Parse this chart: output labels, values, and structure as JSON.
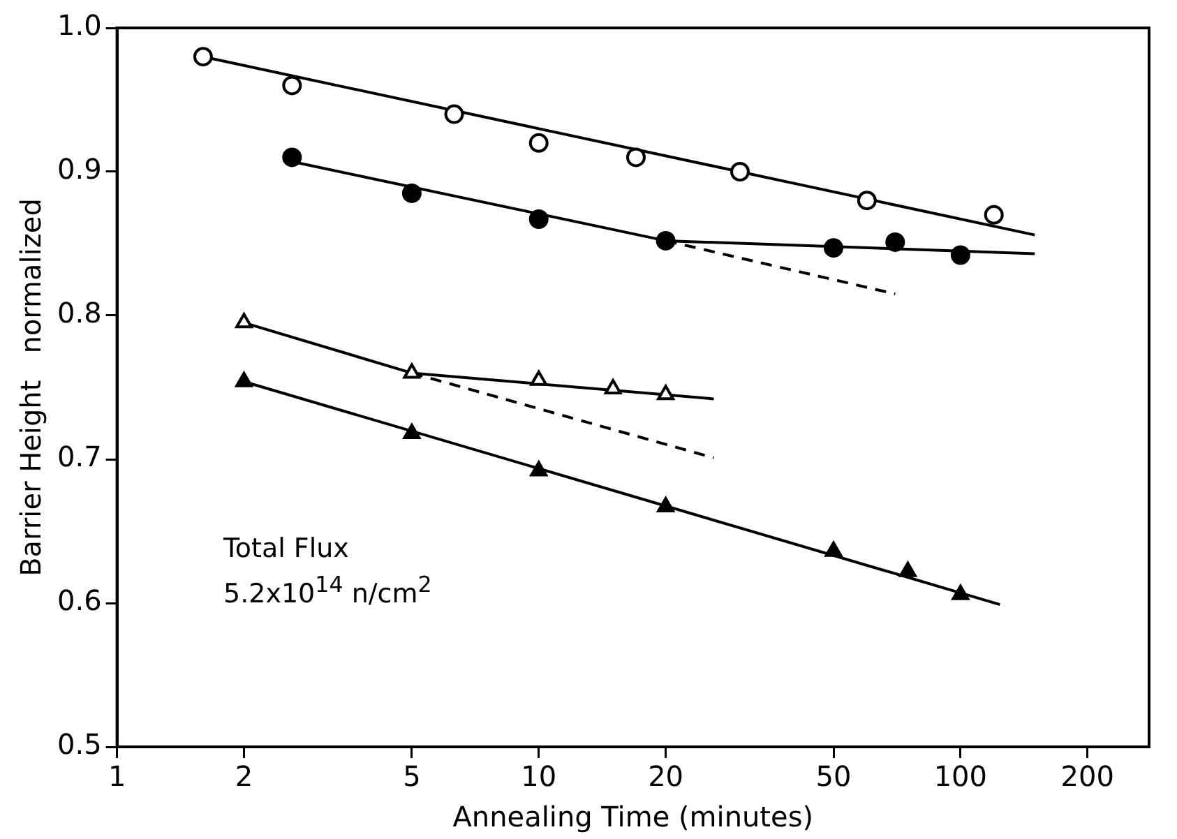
{
  "chart_data": {
    "type": "scatter",
    "xlabel": "Annealing Time (minutes)",
    "ylabel": "Barrier Height   normalized",
    "log": "x",
    "xlim": [
      1,
      280
    ],
    "xticks": [
      1,
      2,
      5,
      10,
      20,
      50,
      100,
      200
    ],
    "ylim": [
      0.5,
      1.0
    ],
    "yticks": [
      {
        "value": 0.5,
        "label": "0.5"
      },
      {
        "value": 0.6,
        "label": "0.6"
      },
      {
        "value": 0.7,
        "label": "0.7"
      },
      {
        "value": 0.8,
        "label": "0.8"
      },
      {
        "value": 0.9,
        "label": "0.9"
      },
      {
        "value": 1.0,
        "label": "1.0"
      }
    ],
    "grid": false,
    "legend": false,
    "annotations": [
      "Total Flux",
      "5.2x10$^{14}$ n/cm$^{2}$"
    ],
    "series": [
      {
        "color": "#ffffff",
        "marker": "circle",
        "x": [
          1.6,
          2.6,
          6.3,
          10,
          17,
          30,
          60,
          120
        ],
        "values": [
          0.98,
          0.96,
          0.94,
          0.92,
          0.91,
          0.9,
          0.88,
          0.87
        ]
      },
      {
        "color": "#000000",
        "marker": "circle",
        "x": [
          2.6,
          5,
          10,
          20,
          50,
          70,
          100
        ],
        "values": [
          0.91,
          0.885,
          0.867,
          0.852,
          0.847,
          0.851,
          0.842
        ]
      },
      {
        "color": "#ffffff",
        "marker": "triangle",
        "x": [
          2,
          5,
          10,
          15,
          20
        ],
        "values": [
          0.795,
          0.76,
          0.755,
          0.749,
          0.745
        ]
      },
      {
        "color": "#000000",
        "marker": "triangle",
        "x": [
          2,
          5,
          10,
          20,
          50,
          75,
          100
        ],
        "values": [
          0.754,
          0.718,
          0.692,
          0.667,
          0.636,
          0.622,
          0.606
        ]
      },
      {
        "type": "line",
        "color": "#000000",
        "marker": "none",
        "line_style": "solid",
        "x": [
          1.6,
          150
        ],
        "values": [
          0.98,
          0.856
        ]
      },
      {
        "type": "line",
        "color": "#000000",
        "marker": "none",
        "line_style": "solid",
        "x": [
          2.6,
          20,
          150
        ],
        "values": [
          0.907,
          0.852,
          0.843
        ]
      },
      {
        "type": "line",
        "color": "#000000",
        "marker": "none",
        "line_style": "dashed",
        "x": [
          20,
          70
        ],
        "values": [
          0.852,
          0.815
        ]
      },
      {
        "type": "line",
        "color": "#000000",
        "marker": "none",
        "line_style": "solid",
        "x": [
          2,
          5,
          26
        ],
        "values": [
          0.795,
          0.76,
          0.742
        ]
      },
      {
        "type": "line",
        "color": "#000000",
        "marker": "none",
        "line_style": "dashed",
        "x": [
          5,
          26
        ],
        "values": [
          0.76,
          0.701
        ]
      },
      {
        "type": "line",
        "color": "#000000",
        "marker": "none",
        "line_style": "solid",
        "x": [
          2,
          124
        ],
        "values": [
          0.754,
          0.599
        ]
      }
    ]
  }
}
